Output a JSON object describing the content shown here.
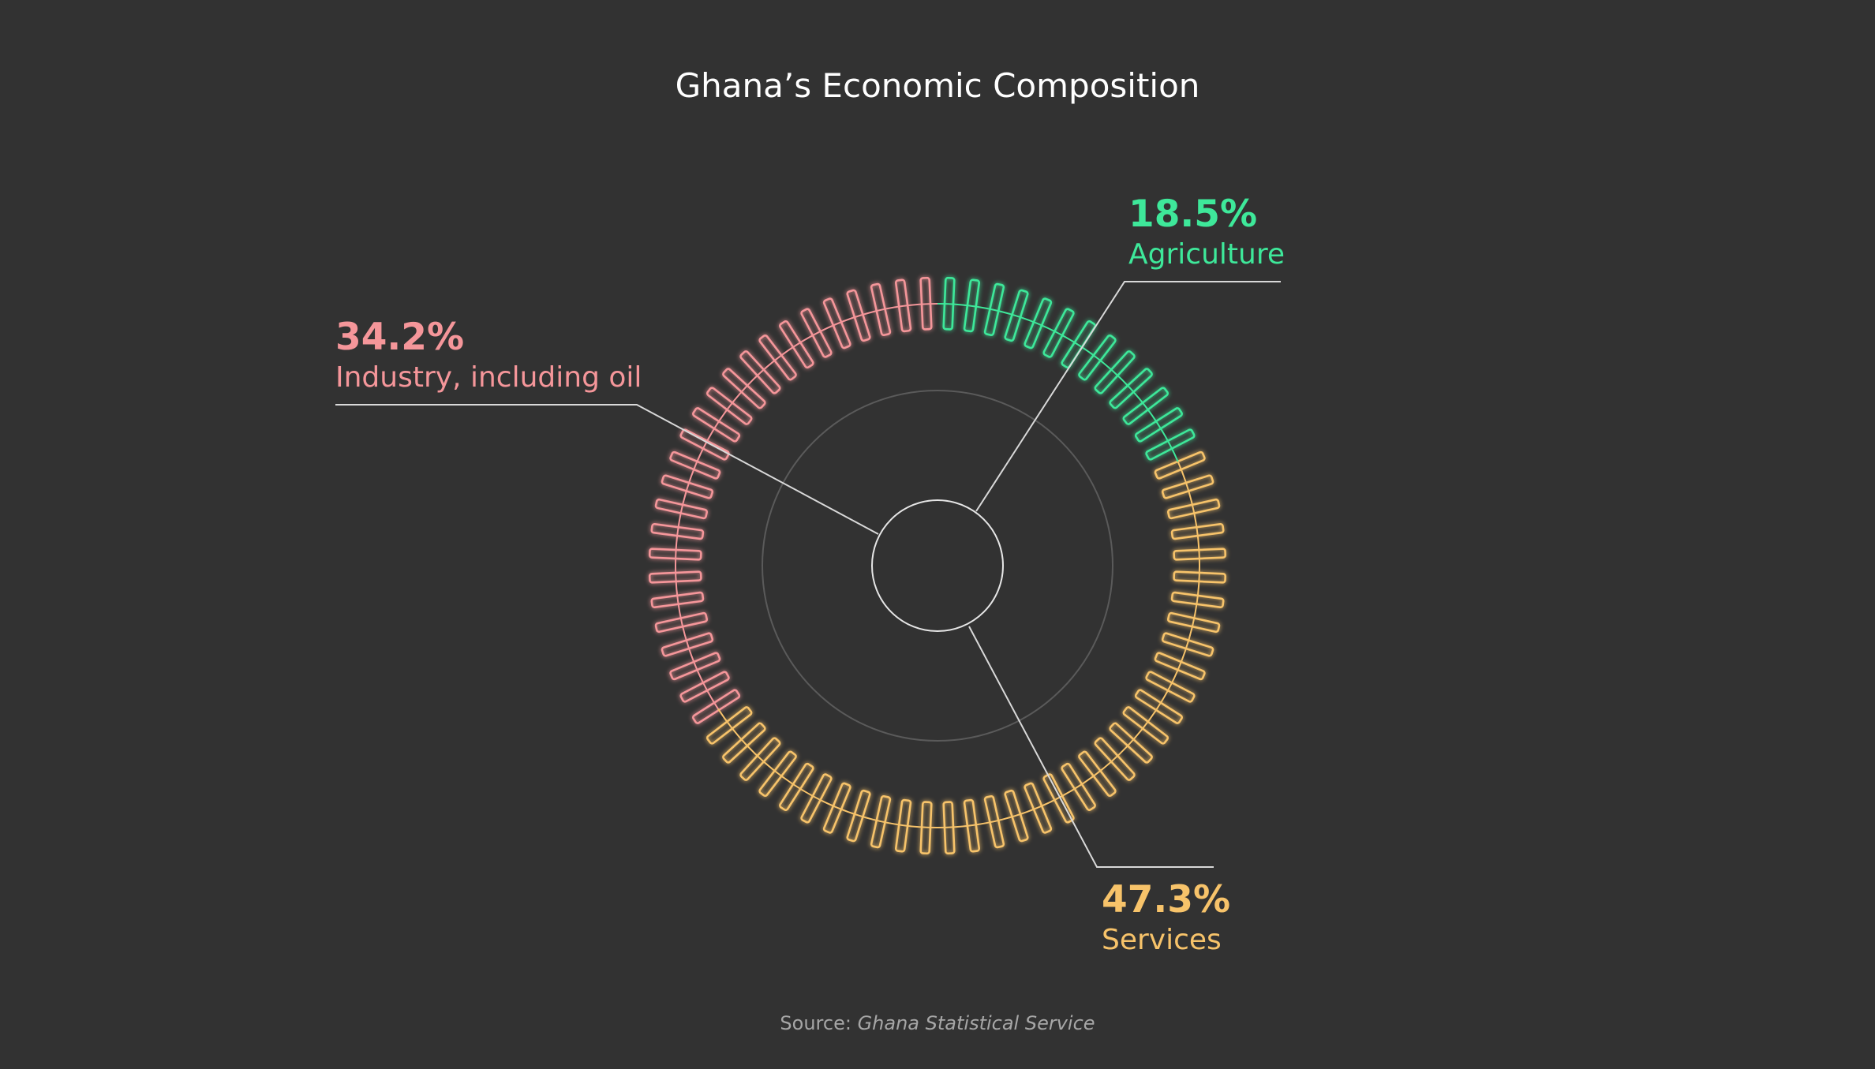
{
  "chart_data": {
    "type": "pie",
    "title": "Ghana’s Economic Composition",
    "categories": [
      "Agriculture",
      "Services",
      "Industry, including oil"
    ],
    "values": [
      18.5,
      47.3,
      34.2
    ],
    "value_labels": [
      "18.5%",
      "47.3%",
      "34.2%"
    ],
    "unit": "%",
    "colors": [
      "#3ee89a",
      "#f7c36a",
      "#f5969a"
    ],
    "source_prefix": "Source:",
    "source_name": "Ghana Statistical Service",
    "legend": "callouts"
  }
}
